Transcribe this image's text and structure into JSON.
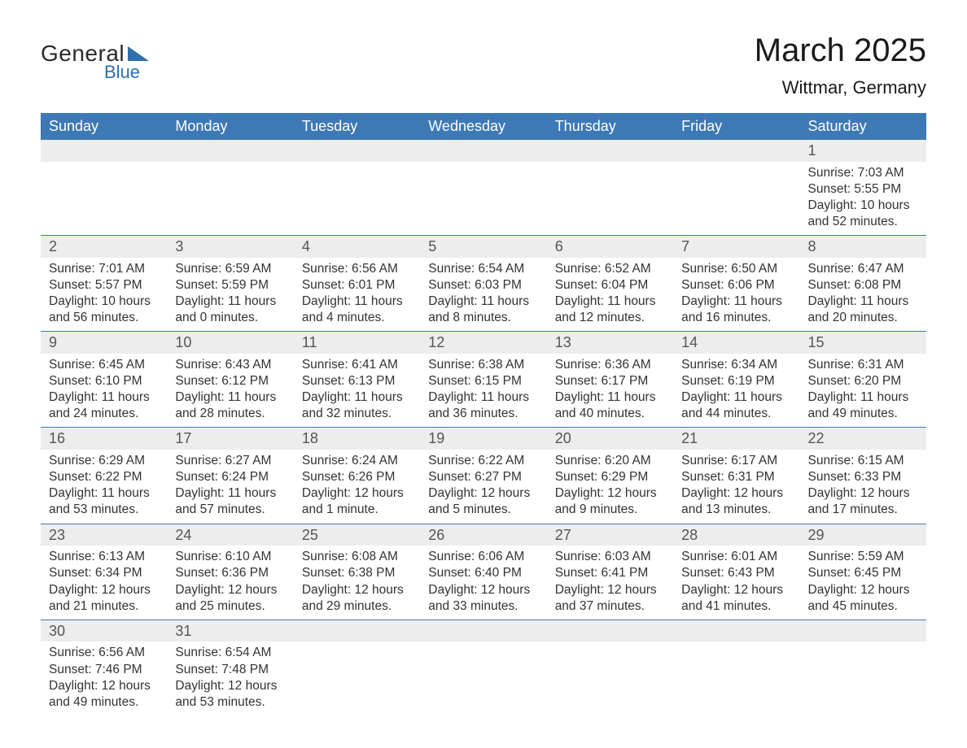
{
  "brand": {
    "general": "General",
    "blue": "Blue"
  },
  "title": "March 2025",
  "location": "Wittmar, Germany",
  "colors": {
    "header_bg": "#3d79b6",
    "header_text": "#ffffff",
    "row_divider": "#3d79b6",
    "daynum_bg": "#ededed",
    "daynum_text": "#555555",
    "body_text": "#333333",
    "brand_accent": "#2f6fae",
    "page_bg": "#ffffff"
  },
  "typography": {
    "title_fontsize": 40,
    "location_fontsize": 22,
    "weekday_fontsize": 18,
    "daynum_fontsize": 18,
    "body_fontsize": 15.5,
    "font_family": "Arial"
  },
  "calendar": {
    "type": "table",
    "columns": [
      "Sunday",
      "Monday",
      "Tuesday",
      "Wednesday",
      "Thursday",
      "Friday",
      "Saturday"
    ],
    "weeks": [
      [
        null,
        null,
        null,
        null,
        null,
        null,
        {
          "day": "1",
          "sunrise": "Sunrise: 7:03 AM",
          "sunset": "Sunset: 5:55 PM",
          "dl1": "Daylight: 10 hours",
          "dl2": "and 52 minutes."
        }
      ],
      [
        {
          "day": "2",
          "sunrise": "Sunrise: 7:01 AM",
          "sunset": "Sunset: 5:57 PM",
          "dl1": "Daylight: 10 hours",
          "dl2": "and 56 minutes."
        },
        {
          "day": "3",
          "sunrise": "Sunrise: 6:59 AM",
          "sunset": "Sunset: 5:59 PM",
          "dl1": "Daylight: 11 hours",
          "dl2": "and 0 minutes."
        },
        {
          "day": "4",
          "sunrise": "Sunrise: 6:56 AM",
          "sunset": "Sunset: 6:01 PM",
          "dl1": "Daylight: 11 hours",
          "dl2": "and 4 minutes."
        },
        {
          "day": "5",
          "sunrise": "Sunrise: 6:54 AM",
          "sunset": "Sunset: 6:03 PM",
          "dl1": "Daylight: 11 hours",
          "dl2": "and 8 minutes."
        },
        {
          "day": "6",
          "sunrise": "Sunrise: 6:52 AM",
          "sunset": "Sunset: 6:04 PM",
          "dl1": "Daylight: 11 hours",
          "dl2": "and 12 minutes."
        },
        {
          "day": "7",
          "sunrise": "Sunrise: 6:50 AM",
          "sunset": "Sunset: 6:06 PM",
          "dl1": "Daylight: 11 hours",
          "dl2": "and 16 minutes."
        },
        {
          "day": "8",
          "sunrise": "Sunrise: 6:47 AM",
          "sunset": "Sunset: 6:08 PM",
          "dl1": "Daylight: 11 hours",
          "dl2": "and 20 minutes."
        }
      ],
      [
        {
          "day": "9",
          "sunrise": "Sunrise: 6:45 AM",
          "sunset": "Sunset: 6:10 PM",
          "dl1": "Daylight: 11 hours",
          "dl2": "and 24 minutes."
        },
        {
          "day": "10",
          "sunrise": "Sunrise: 6:43 AM",
          "sunset": "Sunset: 6:12 PM",
          "dl1": "Daylight: 11 hours",
          "dl2": "and 28 minutes."
        },
        {
          "day": "11",
          "sunrise": "Sunrise: 6:41 AM",
          "sunset": "Sunset: 6:13 PM",
          "dl1": "Daylight: 11 hours",
          "dl2": "and 32 minutes."
        },
        {
          "day": "12",
          "sunrise": "Sunrise: 6:38 AM",
          "sunset": "Sunset: 6:15 PM",
          "dl1": "Daylight: 11 hours",
          "dl2": "and 36 minutes."
        },
        {
          "day": "13",
          "sunrise": "Sunrise: 6:36 AM",
          "sunset": "Sunset: 6:17 PM",
          "dl1": "Daylight: 11 hours",
          "dl2": "and 40 minutes."
        },
        {
          "day": "14",
          "sunrise": "Sunrise: 6:34 AM",
          "sunset": "Sunset: 6:19 PM",
          "dl1": "Daylight: 11 hours",
          "dl2": "and 44 minutes."
        },
        {
          "day": "15",
          "sunrise": "Sunrise: 6:31 AM",
          "sunset": "Sunset: 6:20 PM",
          "dl1": "Daylight: 11 hours",
          "dl2": "and 49 minutes."
        }
      ],
      [
        {
          "day": "16",
          "sunrise": "Sunrise: 6:29 AM",
          "sunset": "Sunset: 6:22 PM",
          "dl1": "Daylight: 11 hours",
          "dl2": "and 53 minutes."
        },
        {
          "day": "17",
          "sunrise": "Sunrise: 6:27 AM",
          "sunset": "Sunset: 6:24 PM",
          "dl1": "Daylight: 11 hours",
          "dl2": "and 57 minutes."
        },
        {
          "day": "18",
          "sunrise": "Sunrise: 6:24 AM",
          "sunset": "Sunset: 6:26 PM",
          "dl1": "Daylight: 12 hours",
          "dl2": "and 1 minute."
        },
        {
          "day": "19",
          "sunrise": "Sunrise: 6:22 AM",
          "sunset": "Sunset: 6:27 PM",
          "dl1": "Daylight: 12 hours",
          "dl2": "and 5 minutes."
        },
        {
          "day": "20",
          "sunrise": "Sunrise: 6:20 AM",
          "sunset": "Sunset: 6:29 PM",
          "dl1": "Daylight: 12 hours",
          "dl2": "and 9 minutes."
        },
        {
          "day": "21",
          "sunrise": "Sunrise: 6:17 AM",
          "sunset": "Sunset: 6:31 PM",
          "dl1": "Daylight: 12 hours",
          "dl2": "and 13 minutes."
        },
        {
          "day": "22",
          "sunrise": "Sunrise: 6:15 AM",
          "sunset": "Sunset: 6:33 PM",
          "dl1": "Daylight: 12 hours",
          "dl2": "and 17 minutes."
        }
      ],
      [
        {
          "day": "23",
          "sunrise": "Sunrise: 6:13 AM",
          "sunset": "Sunset: 6:34 PM",
          "dl1": "Daylight: 12 hours",
          "dl2": "and 21 minutes."
        },
        {
          "day": "24",
          "sunrise": "Sunrise: 6:10 AM",
          "sunset": "Sunset: 6:36 PM",
          "dl1": "Daylight: 12 hours",
          "dl2": "and 25 minutes."
        },
        {
          "day": "25",
          "sunrise": "Sunrise: 6:08 AM",
          "sunset": "Sunset: 6:38 PM",
          "dl1": "Daylight: 12 hours",
          "dl2": "and 29 minutes."
        },
        {
          "day": "26",
          "sunrise": "Sunrise: 6:06 AM",
          "sunset": "Sunset: 6:40 PM",
          "dl1": "Daylight: 12 hours",
          "dl2": "and 33 minutes."
        },
        {
          "day": "27",
          "sunrise": "Sunrise: 6:03 AM",
          "sunset": "Sunset: 6:41 PM",
          "dl1": "Daylight: 12 hours",
          "dl2": "and 37 minutes."
        },
        {
          "day": "28",
          "sunrise": "Sunrise: 6:01 AM",
          "sunset": "Sunset: 6:43 PM",
          "dl1": "Daylight: 12 hours",
          "dl2": "and 41 minutes."
        },
        {
          "day": "29",
          "sunrise": "Sunrise: 5:59 AM",
          "sunset": "Sunset: 6:45 PM",
          "dl1": "Daylight: 12 hours",
          "dl2": "and 45 minutes."
        }
      ],
      [
        {
          "day": "30",
          "sunrise": "Sunrise: 6:56 AM",
          "sunset": "Sunset: 7:46 PM",
          "dl1": "Daylight: 12 hours",
          "dl2": "and 49 minutes."
        },
        {
          "day": "31",
          "sunrise": "Sunrise: 6:54 AM",
          "sunset": "Sunset: 7:48 PM",
          "dl1": "Daylight: 12 hours",
          "dl2": "and 53 minutes."
        },
        null,
        null,
        null,
        null,
        null
      ]
    ]
  }
}
